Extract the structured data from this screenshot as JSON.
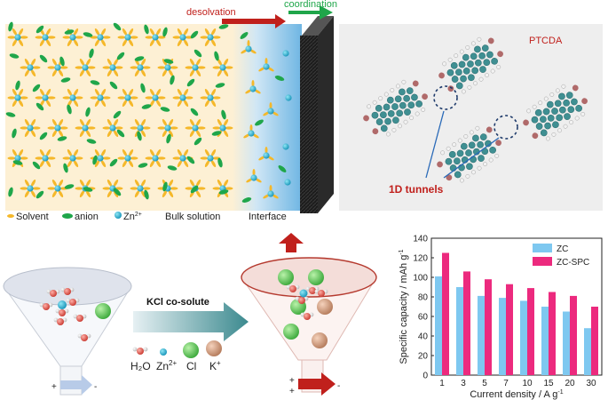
{
  "top": {
    "arrow_desolvation": "desolvation",
    "arrow_coordination": "coordination",
    "legend_solvent": "Solvent",
    "legend_anion": "anion",
    "legend_zn": "Zn",
    "legend_zn_sup": "2+",
    "label_bulk": "Bulk solution",
    "label_interface": "Interface",
    "ptcda_title": "PTCDA",
    "tunnels_label": "1D tunnels",
    "colors": {
      "desolvation": "#c0201c",
      "coordination": "#1fa64a",
      "tunnels": "#c0201c"
    }
  },
  "middle": {
    "kcl_label": "KCl co-solute",
    "legend_h2o": "H₂O",
    "legend_zn": "Zn",
    "legend_zn_sup": "2+",
    "legend_cl": "Cl",
    "legend_k": "K",
    "legend_k_sup": "+",
    "plus": "+",
    "minus": "-"
  },
  "chart_data": {
    "type": "bar",
    "categories": [
      "1",
      "3",
      "5",
      "7",
      "10",
      "15",
      "20",
      "30"
    ],
    "series": [
      {
        "name": "ZC",
        "color": "#7ec8f0",
        "values": [
          101,
          90,
          81,
          79,
          76,
          70,
          65,
          48
        ]
      },
      {
        "name": "ZC-SPC",
        "color": "#ec2a7e",
        "values": [
          125,
          106,
          98,
          93,
          89,
          85,
          81,
          70
        ]
      }
    ],
    "xlabel": "Current density / A g",
    "xlabel_sup": "-1",
    "ylabel": "Specific capacity / mAh g",
    "ylabel_sup": "-1",
    "ylim": [
      0,
      140
    ],
    "yticks": [
      0,
      20,
      40,
      60,
      80,
      100,
      120,
      140
    ],
    "legend_position": "top-right"
  }
}
